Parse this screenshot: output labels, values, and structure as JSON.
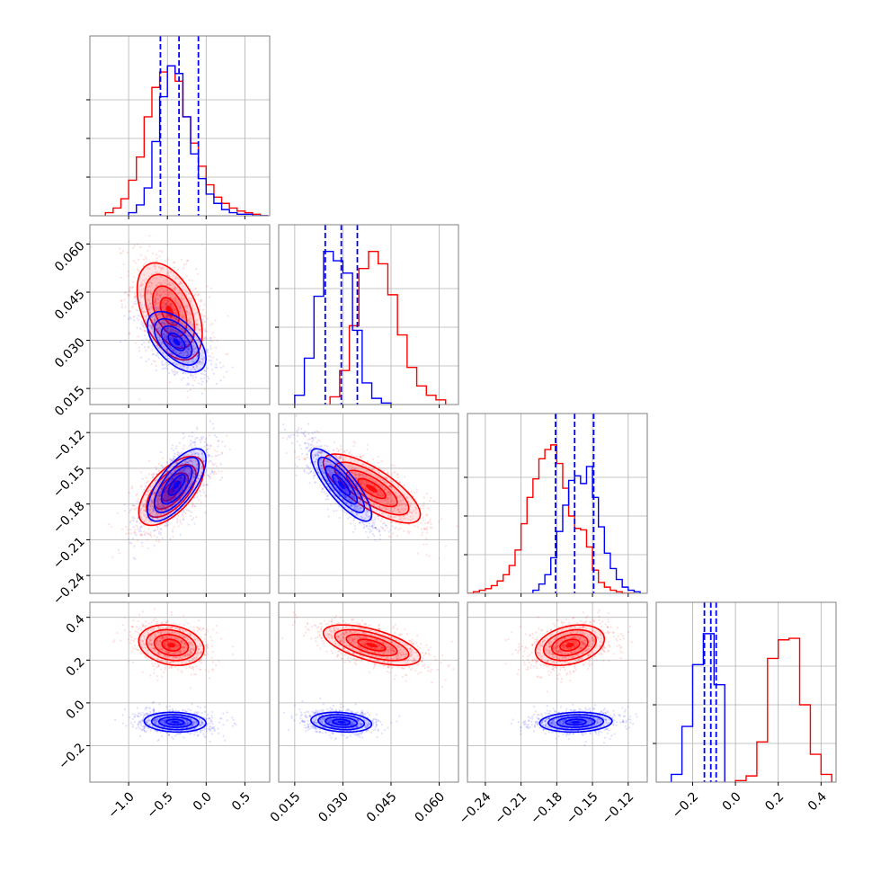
{
  "chart_data": {
    "type": "corner",
    "title": "",
    "legend": [],
    "grid": true,
    "colors": {
      "red_series": "#ff0000",
      "blue_series": "#0000ff",
      "grid": "#b0b0b0",
      "frame": "#808080"
    },
    "parameters": [
      {
        "range": [
          -1.5,
          0.82
        ],
        "ticks": [
          -1.0,
          -0.5,
          0.0,
          0.5
        ],
        "tick_labels": [
          "−1.0",
          "−0.5",
          "0.0",
          "0.5"
        ]
      },
      {
        "range": [
          0.01,
          0.066
        ],
        "ticks": [
          0.015,
          0.03,
          0.045,
          0.06
        ],
        "tick_labels": [
          "0.015",
          "0.030",
          "0.045",
          "0.060"
        ]
      },
      {
        "range": [
          -0.255,
          -0.104
        ],
        "ticks": [
          -0.24,
          -0.21,
          -0.18,
          -0.15,
          -0.12
        ],
        "tick_labels": [
          "−0.24",
          "−0.21",
          "−0.18",
          "−0.15",
          "−0.12"
        ]
      },
      {
        "range": [
          -0.37,
          0.47
        ],
        "ticks": [
          -0.2,
          0.0,
          0.2,
          0.4
        ],
        "tick_labels": [
          "−0.2",
          "0.0",
          "0.2",
          "0.4"
        ]
      }
    ],
    "series": [
      {
        "color": "#ff0000",
        "histograms": [
          {
            "edges": [
              -1.3,
              -1.2,
              -1.1,
              -1.0,
              -0.9,
              -0.8,
              -0.7,
              -0.6,
              -0.5,
              -0.4,
              -0.3,
              -0.2,
              -0.1,
              0.0,
              0.1,
              0.2,
              0.3,
              0.4,
              0.5,
              0.6,
              0.7,
              0.8
            ],
            "counts": [
              0.02,
              0.05,
              0.11,
              0.23,
              0.38,
              0.64,
              0.83,
              0.93,
              0.97,
              0.87,
              0.64,
              0.47,
              0.32,
              0.2,
              0.12,
              0.08,
              0.05,
              0.03,
              0.02,
              0.01,
              0.0
            ]
          },
          {
            "edges": [
              0.026,
              0.029,
              0.032,
              0.035,
              0.038,
              0.041,
              0.044,
              0.047,
              0.05,
              0.053,
              0.056,
              0.059,
              0.062
            ],
            "counts": [
              0.05,
              0.22,
              0.51,
              0.88,
              0.99,
              0.91,
              0.71,
              0.45,
              0.24,
              0.12,
              0.06,
              0.03
            ]
          },
          {
            "edges": [
              -0.255,
              -0.25,
              -0.245,
              -0.24,
              -0.235,
              -0.23,
              -0.225,
              -0.22,
              -0.215,
              -0.21,
              -0.205,
              -0.2,
              -0.195,
              -0.19,
              -0.185,
              -0.18,
              -0.175,
              -0.17,
              -0.165,
              -0.16,
              -0.155,
              -0.15,
              -0.145,
              -0.14,
              -0.135,
              -0.13,
              -0.125,
              -0.12,
              -0.115
            ],
            "counts": [
              0.0,
              0.01,
              0.02,
              0.03,
              0.05,
              0.08,
              0.12,
              0.18,
              0.28,
              0.45,
              0.62,
              0.74,
              0.87,
              0.93,
              0.96,
              0.84,
              0.68,
              0.5,
              0.42,
              0.41,
              0.3,
              0.15,
              0.07,
              0.04,
              0.02,
              0.01,
              0.0,
              0.0
            ]
          },
          {
            "edges": [
              0.0,
              0.05,
              0.1,
              0.15,
              0.2,
              0.25,
              0.3,
              0.35,
              0.4,
              0.45
            ],
            "counts": [
              0.01,
              0.04,
              0.26,
              0.8,
              0.92,
              0.93,
              0.5,
              0.18,
              0.05
            ]
          }
        ],
        "contours": [
          {
            "x": 1,
            "y": 2,
            "center": [
              -0.47,
              0.039
            ],
            "sd": [
              0.2,
              0.0072
            ],
            "rho": -0.45
          },
          {
            "x": 1,
            "y": 3,
            "center": [
              -0.45,
              -0.169
            ],
            "sd": [
              0.2,
              0.0138
            ],
            "rho": 0.62
          },
          {
            "x": 2,
            "y": 3,
            "center": [
              0.039,
              -0.167
            ],
            "sd": [
              0.0072,
              0.0138
            ],
            "rho": -0.75
          },
          {
            "x": 1,
            "y": 4,
            "center": [
              -0.45,
              0.27
            ],
            "sd": [
              0.2,
              0.045
            ],
            "rho": -0.2
          },
          {
            "x": 2,
            "y": 4,
            "center": [
              0.039,
              0.27
            ],
            "sd": [
              0.0072,
              0.045
            ],
            "rho": -0.6
          },
          {
            "x": 3,
            "y": 4,
            "center": [
              -0.169,
              0.27
            ],
            "sd": [
              0.0138,
              0.045
            ],
            "rho": 0.3
          }
        ]
      },
      {
        "color": "#0000ff",
        "histograms": [
          {
            "edges": [
              -1.0,
              -0.9,
              -0.8,
              -0.7,
              -0.6,
              -0.5,
              -0.4,
              -0.3,
              -0.2,
              -0.1,
              0.0,
              0.1,
              0.2,
              0.3,
              0.4,
              0.5,
              0.6,
              0.7,
              0.8
            ],
            "counts": [
              0.02,
              0.07,
              0.18,
              0.48,
              0.77,
              0.97,
              0.92,
              0.64,
              0.4,
              0.24,
              0.14,
              0.08,
              0.04,
              0.02,
              0.01,
              0.01,
              0.0,
              0.0
            ]
          },
          {
            "edges": [
              0.015,
              0.018,
              0.021,
              0.024,
              0.027,
              0.03,
              0.033,
              0.036,
              0.039,
              0.042,
              0.045
            ],
            "counts": [
              0.06,
              0.3,
              0.7,
              0.99,
              0.93,
              0.85,
              0.48,
              0.14,
              0.04,
              0.01
            ]
          },
          {
            "edges": [
              -0.2,
              -0.195,
              -0.19,
              -0.185,
              -0.18,
              -0.175,
              -0.17,
              -0.165,
              -0.16,
              -0.155,
              -0.15,
              -0.145,
              -0.14,
              -0.135,
              -0.13,
              -0.125,
              -0.12,
              -0.115,
              -0.11
            ],
            "counts": [
              0.02,
              0.06,
              0.12,
              0.23,
              0.4,
              0.57,
              0.73,
              0.76,
              0.71,
              0.82,
              0.62,
              0.43,
              0.26,
              0.16,
              0.09,
              0.04,
              0.02,
              0.01
            ]
          },
          {
            "edges": [
              -0.3,
              -0.25,
              -0.2,
              -0.15,
              -0.1,
              -0.05
            ],
            "counts": [
              0.05,
              0.36,
              0.76,
              0.96,
              0.63
            ]
          }
        ],
        "quantiles": [
          [
            -0.59,
            -0.35,
            -0.1
          ],
          [
            0.0245,
            0.0295,
            0.0345
          ],
          [
            -0.181,
            -0.165,
            -0.149
          ],
          [
            -0.145,
            -0.115,
            -0.09
          ]
        ],
        "contours": [
          {
            "x": 1,
            "y": 2,
            "center": [
              -0.38,
              0.0295
            ],
            "sd": [
              0.18,
              0.0045
            ],
            "rho": -0.55
          },
          {
            "x": 1,
            "y": 3,
            "center": [
              -0.38,
              -0.164
            ],
            "sd": [
              0.18,
              0.0145
            ],
            "rho": 0.7
          },
          {
            "x": 2,
            "y": 3,
            "center": [
              0.0295,
              -0.164
            ],
            "sd": [
              0.0045,
              0.0145
            ],
            "rho": -0.82
          },
          {
            "x": 1,
            "y": 4,
            "center": [
              -0.4,
              -0.09
            ],
            "sd": [
              0.19,
              0.022
            ],
            "rho": -0.1
          },
          {
            "x": 2,
            "y": 4,
            "center": [
              0.0295,
              -0.09
            ],
            "sd": [
              0.0045,
              0.022
            ],
            "rho": -0.2
          },
          {
            "x": 3,
            "y": 4,
            "center": [
              -0.164,
              -0.09
            ],
            "sd": [
              0.0145,
              0.022
            ],
            "rho": 0.1
          }
        ]
      }
    ]
  }
}
